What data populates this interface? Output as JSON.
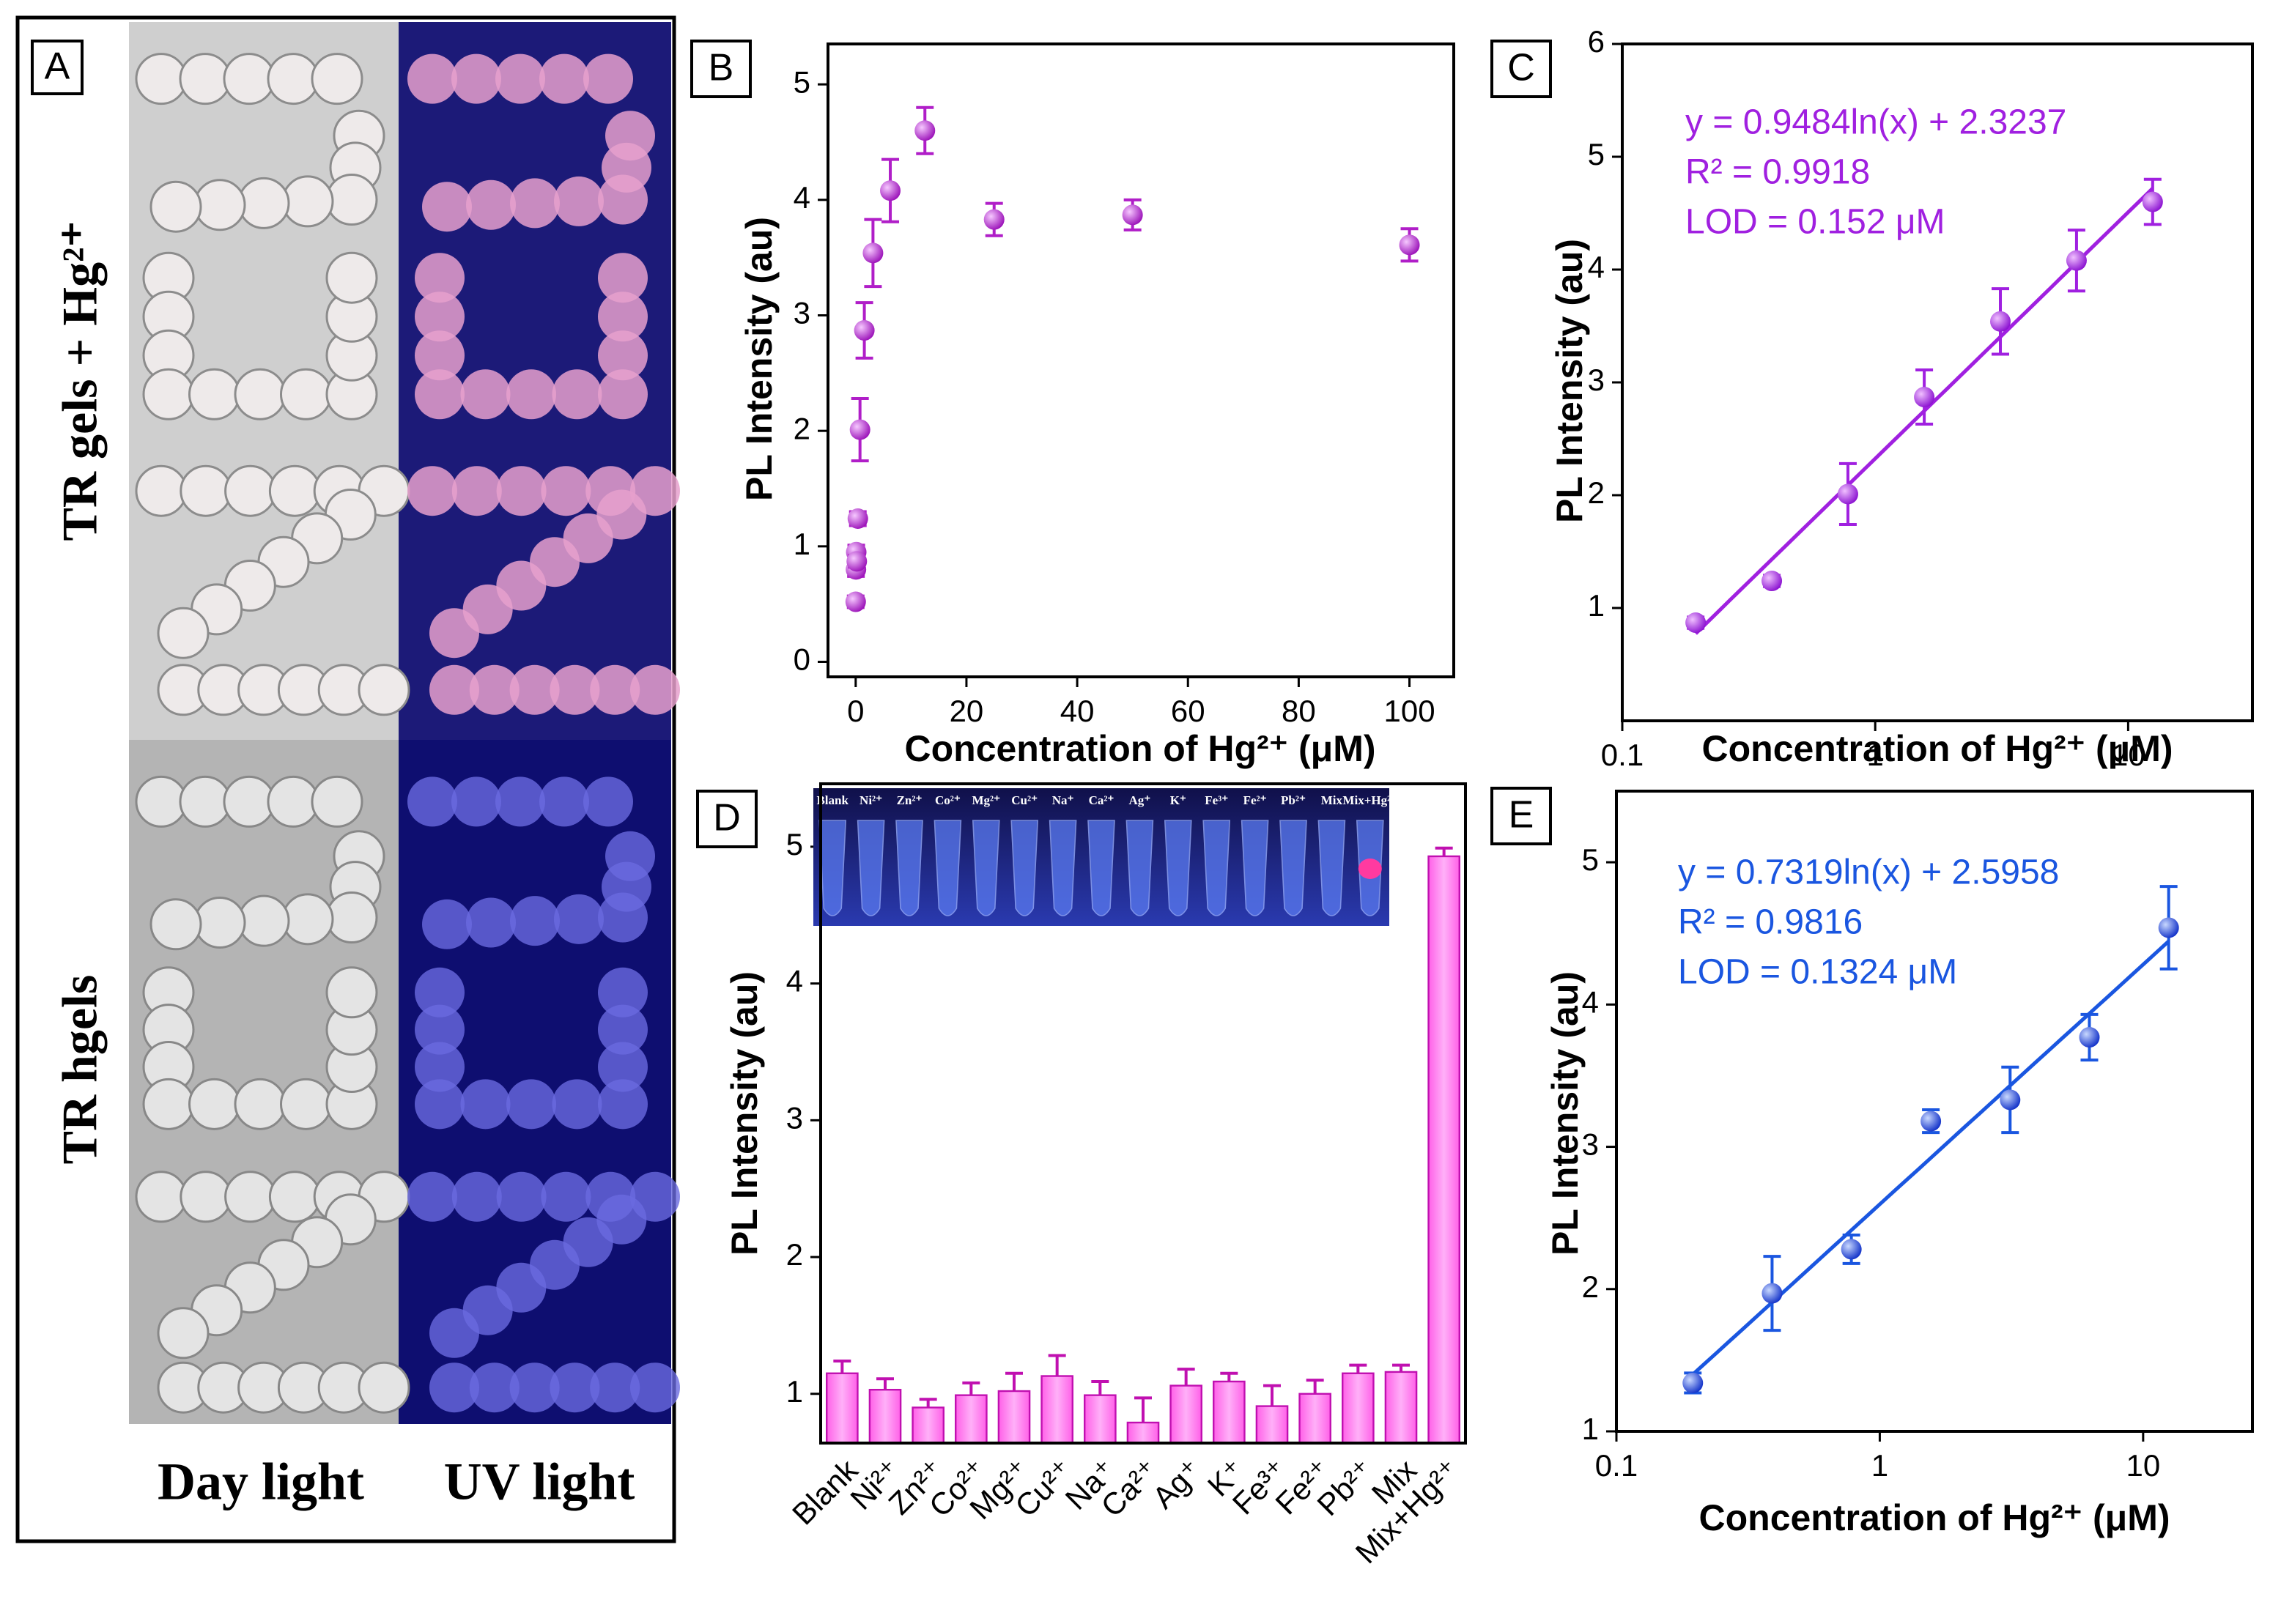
{
  "panel_a": {
    "label": "A",
    "row_labels": [
      "TR gels + Hg²⁺",
      "TR hgels"
    ],
    "column_labels": [
      "Day light",
      "UV light"
    ]
  },
  "chart_data": [
    {
      "type": "scatter",
      "panel": "B",
      "xlabel": "Concentration of Hg²⁺ (μM)",
      "ylabel": "PL Intensity (au)",
      "x": [
        0,
        0.05,
        0.1,
        0.195,
        0.39,
        0.78,
        1.5625,
        3.125,
        6.25,
        12.5,
        25,
        50,
        100
      ],
      "values": [
        0.52,
        0.8,
        0.95,
        0.87,
        1.24,
        2.01,
        2.87,
        3.54,
        4.08,
        4.6,
        3.83,
        3.87,
        3.61
      ],
      "errors": [
        0.05,
        0.06,
        0.06,
        0.05,
        0.06,
        0.27,
        0.24,
        0.29,
        0.27,
        0.2,
        0.14,
        0.13,
        0.14
      ],
      "color": "#b01ec8",
      "xlim": [
        -5,
        108
      ],
      "ylim": [
        -0.13,
        5.35
      ],
      "xticks": [
        0,
        20,
        40,
        60,
        80,
        100
      ],
      "yticks": [
        0,
        1,
        2,
        3,
        4,
        5
      ]
    },
    {
      "type": "scatter",
      "panel": "C",
      "xlabel": "Concentration of Hg²⁺ (μM)",
      "ylabel": "PL Intensity (au)",
      "xscale": "log",
      "x": [
        0.195,
        0.39,
        0.78,
        1.5625,
        3.125,
        6.25,
        12.5
      ],
      "values": [
        0.87,
        1.24,
        2.01,
        2.87,
        3.54,
        4.08,
        4.6
      ],
      "errors": [
        0.05,
        0.05,
        0.27,
        0.24,
        0.29,
        0.27,
        0.2
      ],
      "color": "#a020e0",
      "fit": {
        "slope": 0.9484,
        "intercept": 2.3237,
        "range": [
          0.195,
          12.5
        ]
      },
      "annotations": [
        "y = 0.9484ln(x) + 2.3237",
        "R² = 0.9918",
        "LOD = 0.152 μM"
      ],
      "xlim": [
        0.1,
        31
      ],
      "ylim": [
        0,
        6
      ],
      "xticks": [
        0.1,
        1,
        10
      ],
      "yticks": [
        1,
        2,
        3,
        4,
        5,
        6
      ]
    },
    {
      "type": "bar",
      "panel": "D",
      "ylabel": "PL Intensity (au)",
      "categories": [
        "Blank",
        "Ni²⁺",
        "Zn²⁺",
        "Co²⁺",
        "Mg²⁺",
        "Cu²⁺",
        "Na⁺",
        "Ca²⁺",
        "Ag⁺",
        "K⁺",
        "Fe³⁺",
        "Fe²⁺",
        "Pb²⁺",
        "Mix",
        "Mix+Hg²⁺"
      ],
      "values": [
        1.15,
        1.03,
        0.9,
        0.99,
        1.02,
        1.13,
        0.99,
        0.79,
        1.06,
        1.09,
        0.91,
        1.0,
        1.15,
        1.16,
        4.93
      ],
      "errors": [
        0.09,
        0.08,
        0.06,
        0.09,
        0.13,
        0.15,
        0.1,
        0.18,
        0.12,
        0.06,
        0.15,
        0.1,
        0.06,
        0.05,
        0.06
      ],
      "color": "#ff80f0",
      "ylim": [
        0.64,
        5.46
      ],
      "yticks": [
        1,
        2,
        3,
        4,
        5
      ]
    },
    {
      "type": "scatter",
      "panel": "E",
      "xlabel": "Concentration of Hg²⁺ (μM)",
      "ylabel": "PL Intensity (au)",
      "xscale": "log",
      "x": [
        0.195,
        0.39,
        0.78,
        1.5625,
        3.125,
        6.25,
        12.5
      ],
      "values": [
        1.34,
        1.97,
        2.28,
        3.18,
        3.33,
        3.77,
        4.54
      ],
      "errors": [
        0.07,
        0.26,
        0.1,
        0.08,
        0.23,
        0.16,
        0.29
      ],
      "color": "#1a56e0",
      "fit": {
        "slope": 0.7319,
        "intercept": 2.5958,
        "range": [
          0.195,
          12.5
        ]
      },
      "annotations": [
        "y = 0.7319ln(x) + 2.5958",
        "R² = 0.9816",
        "LOD = 0.1324 μM"
      ],
      "xlim": [
        0.1,
        26
      ],
      "ylim": [
        1,
        5.5
      ],
      "xticks": [
        0.1,
        1,
        10
      ],
      "yticks": [
        1,
        2,
        3,
        4,
        5
      ]
    }
  ]
}
